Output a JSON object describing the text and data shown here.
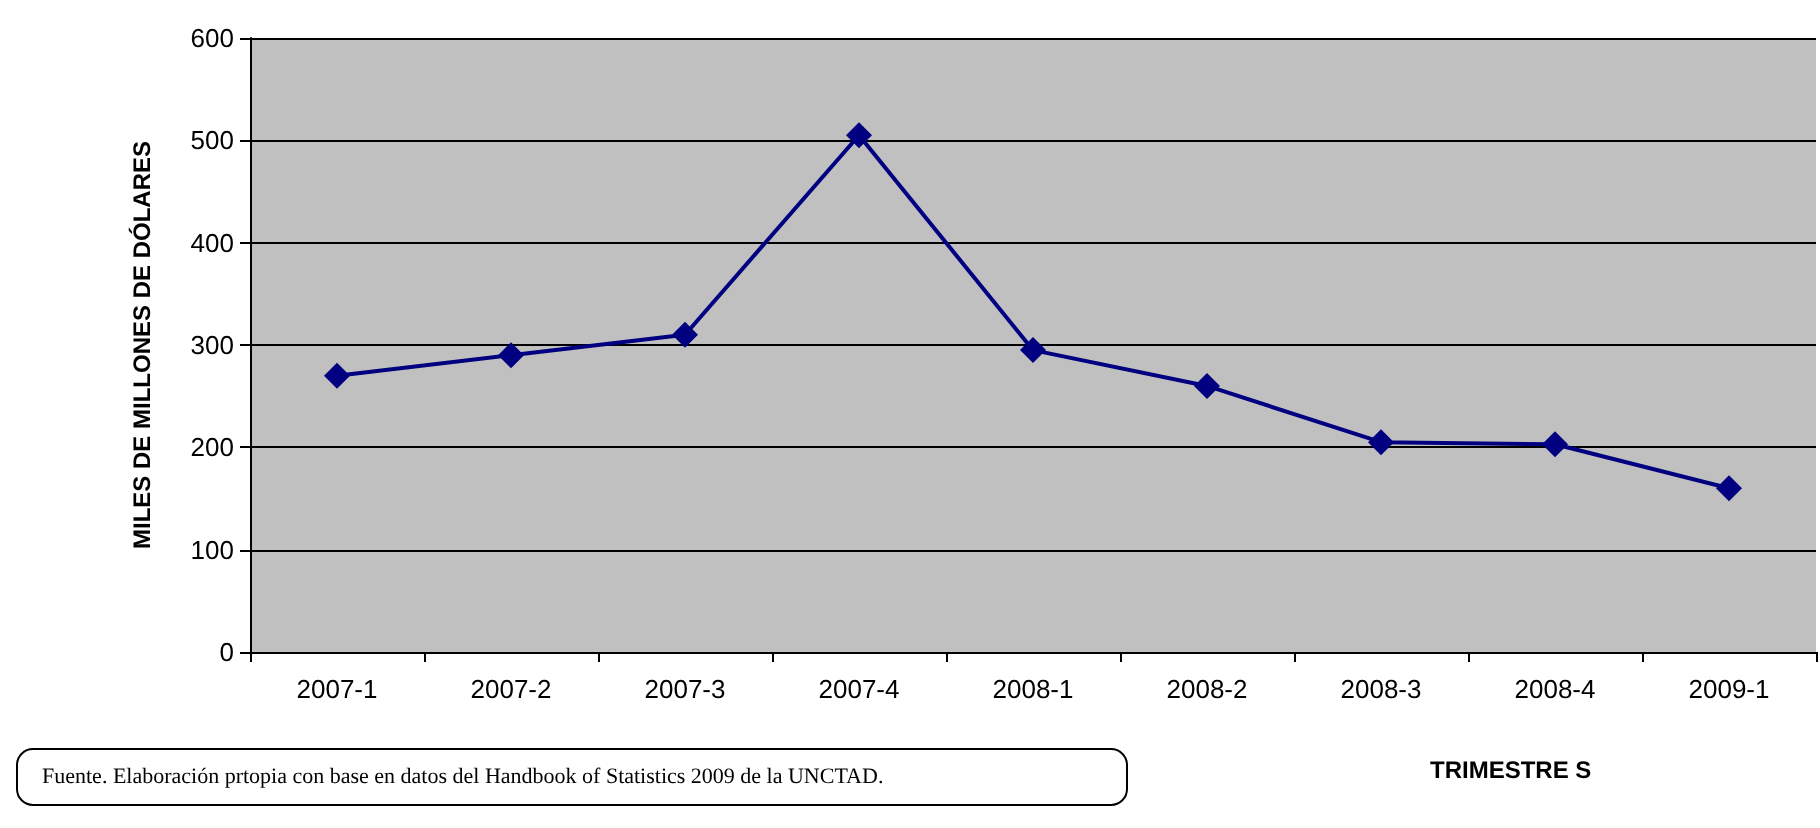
{
  "chart_data": {
    "type": "line",
    "xlabel": "TRIMESTRE S",
    "ylabel": "MILES DE MILLONES DE DÓLARES",
    "categories": [
      "2007-1",
      "2007-2",
      "2007-3",
      "2007-4",
      "2008-1",
      "2008-2",
      "2008-3",
      "2008-4",
      "2009-1"
    ],
    "series": [
      {
        "color": "#000080",
        "values": [
          270,
          290,
          310,
          505,
          295,
          260,
          205,
          203,
          160
        ]
      }
    ],
    "ylim": [
      0,
      600
    ],
    "yticks": [
      0,
      100,
      200,
      300,
      400,
      500,
      600
    ],
    "grid": "y",
    "marker": "diamond",
    "line_style": "solid",
    "annotations": [
      "Fuente. Elaboración prtopia con base en datos del Handbook of Statistics 2009 de la UNCTAD."
    ]
  }
}
